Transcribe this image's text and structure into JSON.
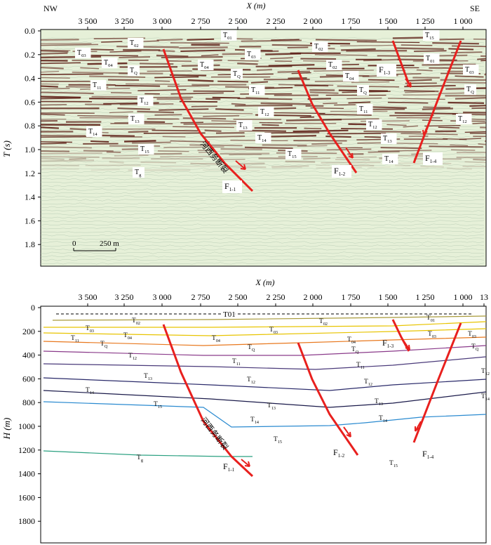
{
  "top_panel": {
    "corner_left": "NW",
    "corner_right": "SE",
    "x_axis_label": "X (m)",
    "y_axis_label": "T (s)",
    "x_ticks": [
      "3 500",
      "3 250",
      "3 000",
      "2 750",
      "2 500",
      "2 250",
      "2 000",
      "1 750",
      "1 500",
      "1 250",
      "1 000"
    ],
    "y_ticks": [
      "0.0",
      "0.2",
      "0.4",
      "0.6",
      "0.8",
      "1.0",
      "1.2",
      "1.4",
      "1.6",
      "1.8"
    ],
    "scale_bar": {
      "zero": "0",
      "length_label": "250 m"
    },
    "fault_name_label": "河西务断裂",
    "horizon_labels": [
      "T01",
      "T02",
      "T03",
      "T04",
      "TQ",
      "T11",
      "T12",
      "T13",
      "T14",
      "T15",
      "Tg",
      "T01",
      "T02",
      "T03",
      "T04",
      "TQ",
      "T11",
      "T12",
      "T13",
      "T14",
      "T15",
      "T02",
      "T04",
      "TQ",
      "T11",
      "T12",
      "T13",
      "T14",
      "T15",
      "T01",
      "T03",
      "TQ",
      "T12",
      "T14"
    ],
    "fault_labels": [
      "F1-1",
      "F1-2",
      "F1-3",
      "F1-4"
    ]
  },
  "bottom_panel": {
    "x_axis_label": "X (m)",
    "y_axis_label": "H (m)",
    "x_ticks": [
      "3 500",
      "3 250",
      "3 000",
      "2 750",
      "2 500",
      "2 250",
      "2 000",
      "1 750",
      "1 500",
      "1 250",
      "1 000",
      "13"
    ],
    "y_ticks": [
      "0",
      "200",
      "400",
      "600",
      "800",
      "1000",
      "1200",
      "1400",
      "1600",
      "1800"
    ],
    "fault_name_label": "河西务断裂",
    "top_dashed_label": "T01",
    "horizon_labels": [
      "T02",
      "T03",
      "T04",
      "TQ",
      "T11",
      "T12",
      "T13",
      "T14",
      "T15",
      "Tg",
      "T02",
      "T03",
      "T04",
      "TQ",
      "T11",
      "T12",
      "T13",
      "T14",
      "T15",
      "T01",
      "T03",
      "TQ",
      "T12",
      "T14",
      "T15",
      "T03",
      "T04",
      "TQ",
      "T11",
      "T12",
      "T13",
      "T14"
    ],
    "fault_labels": [
      "F1-1",
      "F1-2",
      "F1-3",
      "F1-4"
    ]
  },
  "colors": {
    "fault": "#e8201e",
    "fault_label": "#e8201e",
    "seismic_background": "#e6f0d8",
    "reflector_dark": "#5a1a12",
    "T01_T02": "#a89a3a",
    "T03_T04": "#e8c400",
    "TQ": "#e8781e",
    "T11": "#8a3a8a",
    "T12": "#4a3a7a",
    "T13": "#2a2a6a",
    "T14": "#1a1a4a",
    "T15": "#2a8ad0",
    "Tg": "#2aa080"
  }
}
